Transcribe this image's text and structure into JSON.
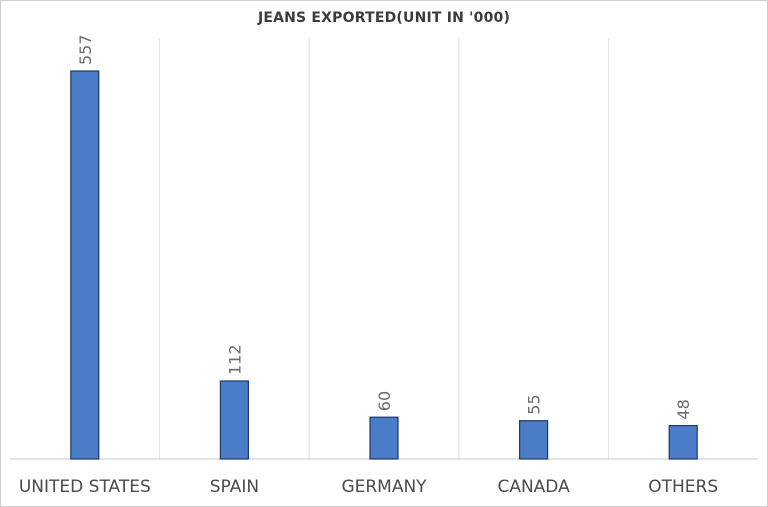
{
  "chart_data": {
    "type": "bar",
    "title": "JEANS EXPORTED(UNIT IN '000)",
    "categories": [
      "UNITED STATES",
      "SPAIN",
      "GERMANY",
      "CANADA",
      "OTHERS"
    ],
    "values": [
      557,
      112,
      60,
      55,
      48
    ],
    "xlabel": "",
    "ylabel": "",
    "ylim": [
      0,
      557
    ],
    "grid": "vertical category separators",
    "legend": "none",
    "colors": {
      "bar": "#4a7cc8",
      "bar_border": "#1f3a66",
      "grid": "#e2e2e2",
      "axis": "#c8c8c8"
    }
  }
}
